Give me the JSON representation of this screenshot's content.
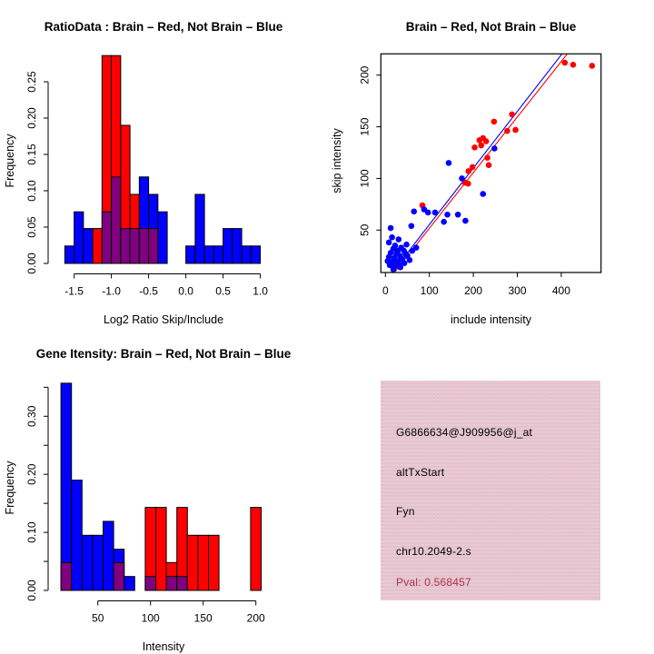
{
  "page": {
    "background": "#FFFFFF"
  },
  "chart_data": [
    {
      "id": "ratio_hist",
      "type": "bar",
      "subtype": "overlaid-histogram",
      "title": "RatioData : Brain – Red, Not Brain – Blue",
      "xlabel": "Log2 Ratio Skip/Include",
      "ylabel": "Frequency",
      "legend_note": "Brain = red, Not Brain = blue, overlap drawn purple",
      "grid": false,
      "xlim": [
        -1.8,
        1.15
      ],
      "ylim": [
        0,
        0.29
      ],
      "bin_width": 0.125,
      "xticks": [
        {
          "v": -1.5,
          "label": "-1.5"
        },
        {
          "v": -1.0,
          "label": "-1.0"
        },
        {
          "v": -0.5,
          "label": "-0.5"
        },
        {
          "v": 0.0,
          "label": "0.0"
        },
        {
          "v": 0.5,
          "label": "0.5"
        },
        {
          "v": 1.0,
          "label": "1.0"
        }
      ],
      "yticks": [
        {
          "v": 0.0,
          "label": "0.00"
        },
        {
          "v": 0.05,
          "label": "0.05"
        },
        {
          "v": 0.1,
          "label": "0.10"
        },
        {
          "v": 0.15,
          "label": "0.15"
        },
        {
          "v": 0.2,
          "label": "0.20"
        },
        {
          "v": 0.25,
          "label": "0.25"
        }
      ],
      "bins": [
        {
          "x0": -1.625,
          "blue": 0.024,
          "red": 0
        },
        {
          "x0": -1.5,
          "blue": 0.071,
          "red": 0
        },
        {
          "x0": -1.375,
          "blue": 0.048,
          "red": 0
        },
        {
          "x0": -1.25,
          "blue": 0,
          "red": 0.048
        },
        {
          "x0": -1.125,
          "blue": 0.071,
          "red": 0.286
        },
        {
          "x0": -1.0,
          "blue": 0.119,
          "red": 0.286
        },
        {
          "x0": -0.875,
          "blue": 0.048,
          "red": 0.19
        },
        {
          "x0": -0.75,
          "blue": 0.048,
          "red": 0.095
        },
        {
          "x0": -0.625,
          "blue": 0.119,
          "red": 0.048
        },
        {
          "x0": -0.5,
          "blue": 0.095,
          "red": 0.048
        },
        {
          "x0": -0.375,
          "blue": 0.071,
          "red": 0
        },
        {
          "x0": 0.0,
          "blue": 0.024,
          "red": 0
        },
        {
          "x0": 0.125,
          "blue": 0.095,
          "red": 0
        },
        {
          "x0": 0.25,
          "blue": 0.024,
          "red": 0
        },
        {
          "x0": 0.375,
          "blue": 0.024,
          "red": 0
        },
        {
          "x0": 0.5,
          "blue": 0.048,
          "red": 0
        },
        {
          "x0": 0.625,
          "blue": 0.048,
          "red": 0
        },
        {
          "x0": 0.75,
          "blue": 0.024,
          "red": 0
        },
        {
          "x0": 0.875,
          "blue": 0.024,
          "red": 0
        }
      ],
      "colors": {
        "red": "#FF0000",
        "blue": "#0000FF",
        "overlap": "#800080"
      }
    },
    {
      "id": "scatter",
      "type": "scatter",
      "title": "Brain – Red, Not Brain – Blue",
      "xlabel": "include intensity",
      "ylabel": "skip intensity",
      "grid": false,
      "frame": true,
      "xlim": [
        -12,
        490
      ],
      "ylim": [
        2,
        224
      ],
      "xticks": [
        {
          "v": 0,
          "label": "0"
        },
        {
          "v": 100,
          "label": "100"
        },
        {
          "v": 200,
          "label": "200"
        },
        {
          "v": 300,
          "label": "300"
        },
        {
          "v": 400,
          "label": "400"
        }
      ],
      "yticks": [
        {
          "v": 50,
          "label": "50"
        },
        {
          "v": 100,
          "label": "100"
        },
        {
          "v": 150,
          "label": "150"
        },
        {
          "v": 200,
          "label": "200"
        }
      ],
      "series": [
        {
          "name": "Brain",
          "color": "#FF0000",
          "points": [
            [
              408,
              212
            ],
            [
              427,
              210
            ],
            [
              470,
              209
            ],
            [
              288,
              162
            ],
            [
              247,
              155
            ],
            [
              277,
              146
            ],
            [
              296,
              147
            ],
            [
              229,
              136
            ],
            [
              222,
              139
            ],
            [
              214,
              137
            ],
            [
              218,
              132
            ],
            [
              203,
              130
            ],
            [
              232,
              120
            ],
            [
              235,
              113
            ],
            [
              198,
              111
            ],
            [
              189,
              107
            ],
            [
              181,
              96
            ],
            [
              188,
              95
            ],
            [
              84,
              74
            ],
            [
              24,
              18
            ]
          ]
        },
        {
          "name": "Not Brain",
          "color": "#0000FF",
          "points": [
            [
              144,
              115
            ],
            [
              248,
              129
            ],
            [
              222,
              85
            ],
            [
              174,
              100
            ],
            [
              165,
              65
            ],
            [
              141,
              65
            ],
            [
              182,
              59
            ],
            [
              133,
              58
            ],
            [
              113,
              67
            ],
            [
              97,
              67
            ],
            [
              88,
              70
            ],
            [
              65,
              68
            ],
            [
              59,
              54
            ],
            [
              12,
              52
            ],
            [
              15,
              43
            ],
            [
              48,
              36
            ],
            [
              70,
              33
            ],
            [
              61,
              30
            ],
            [
              55,
              21
            ],
            [
              30,
              41
            ],
            [
              8,
              38
            ],
            [
              22,
              35
            ],
            [
              36,
              33
            ],
            [
              18,
              32
            ],
            [
              28,
              30
            ],
            [
              42,
              30
            ],
            [
              12,
              28
            ],
            [
              25,
              27
            ],
            [
              46,
              27
            ],
            [
              33,
              25
            ],
            [
              8,
              24
            ],
            [
              20,
              23
            ],
            [
              38,
              22
            ],
            [
              50,
              25
            ],
            [
              28,
              20
            ],
            [
              15,
              19
            ],
            [
              43,
              18
            ],
            [
              10,
              16
            ],
            [
              22,
              15
            ],
            [
              34,
              14
            ],
            [
              5,
              20
            ],
            [
              18,
              12
            ],
            [
              30,
              17
            ]
          ]
        }
      ],
      "fit_lines": [
        {
          "name": "red-fit",
          "color": "#FF0000",
          "from": [
            15,
            6
          ],
          "to": [
            420,
            224
          ]
        },
        {
          "name": "blue-fit",
          "color": "#0000FF",
          "from": [
            10,
            6
          ],
          "to": [
            408,
            224
          ]
        }
      ]
    },
    {
      "id": "gene_hist",
      "type": "bar",
      "subtype": "overlaid-histogram",
      "title": "Gene Itensity: Brain – Red, Not Brain – Blue",
      "xlabel": "Intensity",
      "ylabel": "Frequency",
      "legend_note": "Brain = red, Not Brain = blue, overlap drawn purple",
      "grid": false,
      "xlim": [
        10,
        215
      ],
      "ylim": [
        0,
        0.36
      ],
      "bin_width": 10,
      "xticks": [
        {
          "v": 50,
          "label": "50"
        },
        {
          "v": 100,
          "label": "100"
        },
        {
          "v": 150,
          "label": "150"
        },
        {
          "v": 200,
          "label": "200"
        }
      ],
      "yticks": [
        {
          "v": 0.0,
          "label": "0.00"
        },
        {
          "v": 0.05,
          "label": ""
        },
        {
          "v": 0.1,
          "label": "0.10"
        },
        {
          "v": 0.15,
          "label": ""
        },
        {
          "v": 0.2,
          "label": "0.20"
        },
        {
          "v": 0.25,
          "label": ""
        },
        {
          "v": 0.3,
          "label": "0.30"
        },
        {
          "v": 0.35,
          "label": ""
        }
      ],
      "bins": [
        {
          "x0": 15,
          "blue": 0.357,
          "red": 0.048
        },
        {
          "x0": 25,
          "blue": 0.19,
          "red": 0
        },
        {
          "x0": 35,
          "blue": 0.095,
          "red": 0
        },
        {
          "x0": 45,
          "blue": 0.095,
          "red": 0
        },
        {
          "x0": 55,
          "blue": 0.119,
          "red": 0
        },
        {
          "x0": 65,
          "blue": 0.071,
          "red": 0.048
        },
        {
          "x0": 75,
          "blue": 0.024,
          "red": 0
        },
        {
          "x0": 95,
          "blue": 0.024,
          "red": 0.143
        },
        {
          "x0": 105,
          "blue": 0,
          "red": 0.143
        },
        {
          "x0": 115,
          "blue": 0.024,
          "red": 0.048
        },
        {
          "x0": 125,
          "blue": 0.024,
          "red": 0.143
        },
        {
          "x0": 135,
          "blue": 0,
          "red": 0.095
        },
        {
          "x0": 145,
          "blue": 0,
          "red": 0.095
        },
        {
          "x0": 155,
          "blue": 0,
          "red": 0.095
        },
        {
          "x0": 195,
          "blue": 0,
          "red": 0.143
        }
      ],
      "colors": {
        "red": "#FF0000",
        "blue": "#0000FF",
        "overlap": "#800080"
      }
    }
  ],
  "info_box": {
    "bg_color": "#E7C3CF",
    "lines": [
      {
        "text": "G6866634@J909956@j_at",
        "color": "#000000"
      },
      {
        "text": "altTxStart",
        "color": "#000000"
      },
      {
        "text": "Fyn",
        "color": "#000000"
      },
      {
        "text": "chr10.2049-2.s",
        "color": "#000000"
      },
      {
        "text": "Pval: 0.568457",
        "color": "#AC3144"
      }
    ]
  }
}
